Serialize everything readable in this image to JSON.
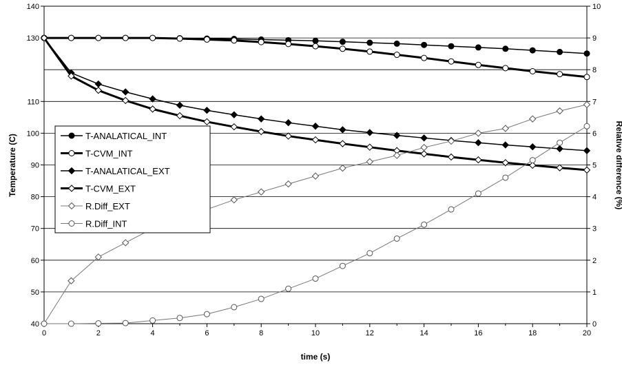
{
  "chart_data": {
    "type": "line",
    "xlabel": "time (s)",
    "ylabel_left": "Temperature (C)",
    "ylabel_right": "Relative difference (%)",
    "xlim": [
      0,
      20
    ],
    "ylim_left": [
      40,
      140
    ],
    "ylim_right": [
      0,
      10
    ],
    "x_ticks": [
      0,
      2,
      4,
      6,
      8,
      10,
      12,
      14,
      16,
      18,
      20
    ],
    "y_left_ticks": [
      40,
      50,
      60,
      70,
      80,
      90,
      100,
      110,
      130,
      140
    ],
    "y_right_ticks": [
      0,
      1,
      2,
      3,
      4,
      5,
      6,
      7,
      8,
      9,
      10
    ],
    "y_left_gridlines": [
      40,
      50,
      60,
      70,
      80,
      90,
      100,
      110,
      120,
      130,
      140
    ],
    "grid": true,
    "legend": "left-center",
    "x": [
      0,
      1,
      2,
      3,
      4,
      5,
      6,
      7,
      8,
      9,
      10,
      11,
      12,
      13,
      14,
      15,
      16,
      17,
      18,
      19,
      20
    ],
    "series": [
      {
        "name": "T-ANALATICAL_INT",
        "axis": "left",
        "marker": "filled-circle",
        "line": "thin",
        "values": [
          130,
          130,
          130,
          130,
          130,
          129.9,
          129.8,
          129.7,
          129.5,
          129.3,
          129.1,
          128.8,
          128.5,
          128.2,
          127.8,
          127.4,
          127.0,
          126.6,
          126.1,
          125.6,
          125.1
        ]
      },
      {
        "name": "T-CVM_INT",
        "axis": "left",
        "marker": "open-circle",
        "line": "thick",
        "values": [
          130,
          130,
          130,
          130,
          130,
          129.8,
          129.5,
          129.2,
          128.7,
          128.1,
          127.4,
          126.6,
          125.7,
          124.7,
          123.7,
          122.6,
          121.5,
          120.5,
          119.5,
          118.6,
          117.7
        ]
      },
      {
        "name": "T-ANALATICAL_EXT",
        "axis": "left",
        "marker": "filled-diamond",
        "line": "thin",
        "values": [
          130,
          119.0,
          115.5,
          113.0,
          110.8,
          108.8,
          107.2,
          105.8,
          104.5,
          103.3,
          102.2,
          101.1,
          100.2,
          99.3,
          98.5,
          97.7,
          97.0,
          96.3,
          95.7,
          95.1,
          94.5
        ]
      },
      {
        "name": "T-CVM_EXT",
        "axis": "left",
        "marker": "open-diamond",
        "line": "thick",
        "values": [
          130,
          118.0,
          113.5,
          110.3,
          107.6,
          105.5,
          103.6,
          102.0,
          100.5,
          99.1,
          97.9,
          96.7,
          95.6,
          94.5,
          93.5,
          92.5,
          91.6,
          90.7,
          89.9,
          89.1,
          88.4
        ]
      },
      {
        "name": "R.Diff_EXT",
        "axis": "right",
        "marker": "open-diamond",
        "line": "thin-gray",
        "values": [
          0,
          1.35,
          2.1,
          2.55,
          3.0,
          3.3,
          3.6,
          3.9,
          4.15,
          4.4,
          4.65,
          4.9,
          5.1,
          5.3,
          5.55,
          5.75,
          6.0,
          6.15,
          6.45,
          6.7,
          6.9
        ]
      },
      {
        "name": "R.Diff_INT",
        "axis": "right",
        "marker": "open-circle",
        "line": "thin-gray",
        "values": [
          0,
          0,
          0.01,
          0.02,
          0.1,
          0.18,
          0.3,
          0.52,
          0.78,
          1.1,
          1.42,
          1.82,
          2.22,
          2.68,
          3.12,
          3.6,
          4.1,
          4.6,
          5.15,
          5.7,
          6.22
        ]
      }
    ]
  }
}
